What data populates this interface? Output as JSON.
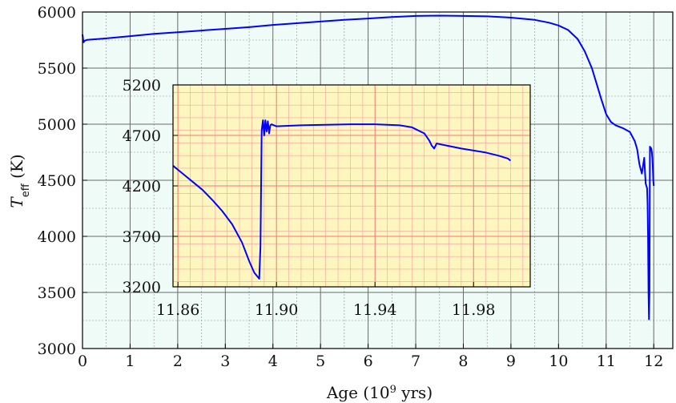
{
  "chart_data": [
    {
      "type": "line",
      "name": "main",
      "xlabel": "Age (10^9 yrs)",
      "xlabel_parts": {
        "before": "Age (10",
        "sup": "9",
        "after": " yrs)"
      },
      "ylabel": "T_eff (K)",
      "ylabel_parts": {
        "T": "T",
        "sub": "eff",
        "after": " (K)"
      },
      "xlim": [
        0,
        12.4
      ],
      "ylim": [
        3000,
        6000
      ],
      "xticks": [
        0,
        1,
        2,
        3,
        4,
        5,
        6,
        7,
        8,
        9,
        10,
        11,
        12
      ],
      "yticks": [
        3000,
        3500,
        4000,
        4500,
        5000,
        5500,
        6000
      ],
      "grid": true,
      "background_color": "#eefbf6",
      "major_grid_color": "#6b6b6b",
      "minor_grid_color": "#8f8f8f",
      "line_color": "#0000ff",
      "series": [
        {
          "x": [
            0.0,
            0.02,
            0.05,
            0.1,
            0.2,
            0.5,
            1.0,
            1.5,
            2.0,
            2.5,
            3.0,
            3.5,
            4.0,
            4.5,
            5.0,
            5.5,
            6.0,
            6.5,
            7.0,
            7.5,
            8.0,
            8.5,
            9.0,
            9.5,
            9.8,
            10.0,
            10.2,
            10.4,
            10.55,
            10.7,
            10.8,
            10.9,
            11.0,
            11.1,
            11.2,
            11.35,
            11.5,
            11.6,
            11.65,
            11.7,
            11.75,
            11.8,
            11.83,
            11.86,
            11.87,
            11.88,
            11.89,
            11.9,
            11.91,
            11.92,
            11.93,
            11.94,
            11.95,
            11.96,
            11.97,
            11.98,
            11.99,
            12.0
          ],
          "y": [
            5800,
            5730,
            5745,
            5752,
            5755,
            5765,
            5785,
            5805,
            5820,
            5835,
            5850,
            5865,
            5885,
            5900,
            5915,
            5930,
            5942,
            5955,
            5965,
            5968,
            5965,
            5962,
            5950,
            5930,
            5905,
            5880,
            5840,
            5760,
            5650,
            5500,
            5360,
            5220,
            5090,
            5020,
            4990,
            4965,
            4930,
            4850,
            4780,
            4640,
            4560,
            4700,
            4470,
            4430,
            4300,
            4000,
            3500,
            3260,
            3500,
            4800,
            4780,
            4790,
            4780,
            4750,
            4700,
            4620,
            4500,
            4450
          ]
        }
      ]
    },
    {
      "type": "line",
      "name": "inset",
      "xlim": [
        11.858,
        12.003
      ],
      "ylim": [
        3200,
        5200
      ],
      "xticks": [
        11.86,
        11.9,
        11.94,
        11.98
      ],
      "xtick_labels": [
        "11.86",
        "11.90",
        "11.94",
        "11.98"
      ],
      "yticks": [
        3200,
        3700,
        4200,
        4700,
        5200
      ],
      "grid": true,
      "background_color": "#fdf7bf",
      "major_grid_color": "#ef7a7a",
      "minor_grid_color": "#f3a0a0",
      "line_color": "#0000ff",
      "series": [
        {
          "x": [
            11.858,
            11.862,
            11.866,
            11.87,
            11.874,
            11.878,
            11.882,
            11.886,
            11.889,
            11.891,
            11.893,
            11.8935,
            11.894,
            11.8945,
            11.895,
            11.8955,
            11.896,
            11.8965,
            11.897,
            11.8975,
            11.898,
            11.9,
            11.91,
            11.92,
            11.93,
            11.94,
            11.95,
            11.955,
            11.96,
            11.962,
            11.963,
            11.964,
            11.965,
            11.967,
            11.97,
            11.975,
            11.98,
            11.985,
            11.99,
            11.994,
            11.995
          ],
          "y": [
            4400,
            4320,
            4240,
            4160,
            4060,
            3950,
            3820,
            3640,
            3450,
            3340,
            3280,
            3600,
            4750,
            4850,
            4700,
            4850,
            4740,
            4840,
            4720,
            4800,
            4810,
            4790,
            4800,
            4805,
            4810,
            4810,
            4800,
            4780,
            4720,
            4650,
            4600,
            4570,
            4620,
            4610,
            4595,
            4570,
            4550,
            4530,
            4500,
            4470,
            4450
          ]
        }
      ]
    }
  ]
}
